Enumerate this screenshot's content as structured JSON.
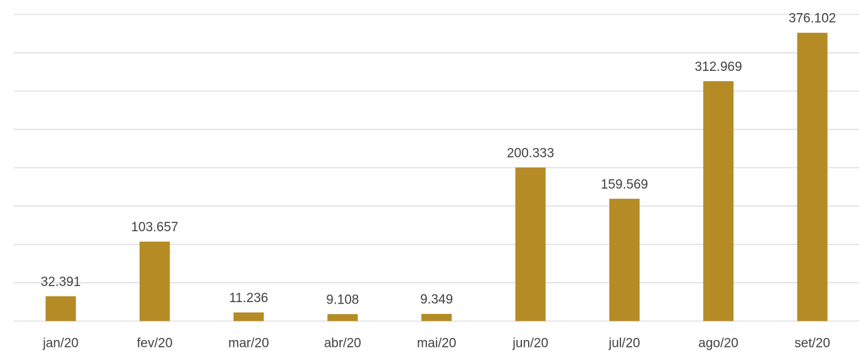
{
  "chart_data": {
    "type": "bar",
    "categories": [
      "jan/20",
      "fev/20",
      "mar/20",
      "abr/20",
      "mai/20",
      "jun/20",
      "jul/20",
      "ago/20",
      "set/20"
    ],
    "values": [
      32391,
      103657,
      11236,
      9108,
      9349,
      200333,
      159569,
      312969,
      376102
    ],
    "data_labels": [
      "32.391",
      "103.657",
      "11.236",
      "9.108",
      "9.349",
      "200.333",
      "159.569",
      "312.969",
      "376.102"
    ],
    "title": "",
    "xlabel": "",
    "ylabel": "",
    "ylim": [
      0,
      400000
    ],
    "y_axis_visible": false,
    "grid": true,
    "legend": "none",
    "bar_color": "#b58b26"
  }
}
